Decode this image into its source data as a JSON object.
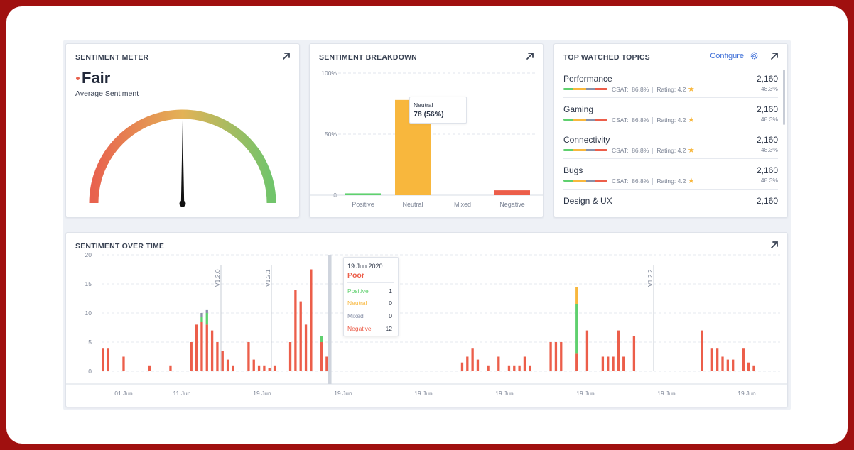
{
  "meter": {
    "title": "SENTIMENT METER",
    "value_label": "Fair",
    "subtitle": "Average Sentiment",
    "status_color": "#e8624e",
    "needle_fraction": 0.5
  },
  "breakdown": {
    "title": "SENTIMENT BREAKDOWN",
    "tooltip": {
      "label": "Neutral",
      "value": "78 (56%)"
    }
  },
  "topics": {
    "title": "TOP WATCHED TOPICS",
    "configure_label": "Configure",
    "items": [
      {
        "name": "Performance",
        "count": "2,160",
        "csat_label": "CSAT:",
        "csat": "86.8%",
        "rating_label": "Rating: 4.2",
        "pct": "48.3%"
      },
      {
        "name": "Gaming",
        "count": "2,160",
        "csat_label": "CSAT:",
        "csat": "86.8%",
        "rating_label": "Rating: 4.2",
        "pct": "48.3%"
      },
      {
        "name": "Connectivity",
        "count": "2,160",
        "csat_label": "CSAT:",
        "csat": "86.8%",
        "rating_label": "Rating: 4.2",
        "pct": "48.3%"
      },
      {
        "name": "Bugs",
        "count": "2,160",
        "csat_label": "CSAT:",
        "csat": "86.8%",
        "rating_label": "Rating: 4.2",
        "pct": "48.3%"
      },
      {
        "name": "Design & UX",
        "count": "2,160"
      }
    ]
  },
  "over_time": {
    "title": "SENTIMENT OVER TIME",
    "tooltip": {
      "date": "19 Jun 2020",
      "status": "Poor",
      "rows": [
        {
          "label": "Positive",
          "value": "1"
        },
        {
          "label": "Neutral",
          "value": "0"
        },
        {
          "label": "Mixed",
          "value": "0"
        },
        {
          "label": "Negative",
          "value": "12"
        }
      ]
    }
  },
  "colors": {
    "positive": "#5fd06e",
    "neutral": "#f8b73d",
    "mixed": "#8891a8",
    "negative": "#ec5e4a",
    "link": "#3e6fd8"
  },
  "chart_data": [
    {
      "type": "bar",
      "categories": [
        "Positive",
        "Neutral",
        "Mixed",
        "Negative"
      ],
      "values": [
        1.5,
        78,
        0,
        4
      ],
      "ylim": [
        0,
        100
      ],
      "y_ticks": [
        "0",
        "50%",
        "100%"
      ],
      "colors": [
        "#5fd06e",
        "#f8b73d",
        "#8891a8",
        "#ec5e4a"
      ],
      "grid": true
    },
    {
      "type": "bar",
      "stacked": true,
      "ylim": [
        0,
        20
      ],
      "y_ticks": [
        "0",
        "5",
        "10",
        "15",
        "20"
      ],
      "x_tick_labels": [
        "01 Jun",
        "11 Jun",
        "19 Jun",
        "19 Jun",
        "19 Jun",
        "19 Jun",
        "19 Jun",
        "19 Jun",
        "19 Jun"
      ],
      "release_markers": [
        "V1.2.0",
        "V1.2.1",
        "V1.2.2"
      ],
      "series": [
        {
          "name": "Negative",
          "values": [
            4,
            4,
            0,
            0,
            2.5,
            0,
            0,
            0,
            0,
            1,
            0,
            0,
            0,
            1,
            0,
            0,
            0,
            5,
            8,
            8.5,
            8,
            7,
            5,
            3.5,
            2,
            1,
            0,
            0,
            5,
            2,
            1,
            1,
            0.5,
            1,
            0,
            0,
            5,
            14,
            12,
            8,
            17.5,
            0,
            5,
            2.5,
            0,
            0,
            0,
            0,
            0,
            0,
            0,
            0,
            0,
            0,
            0,
            0,
            0,
            0,
            0,
            0,
            0,
            0,
            0,
            0,
            0,
            0,
            0,
            0,
            0,
            1.5,
            2.5,
            4,
            2,
            0,
            1,
            0,
            2.5,
            0,
            1,
            1,
            1,
            2.5,
            1,
            0,
            0,
            0,
            5,
            5,
            5,
            0,
            0,
            3,
            0,
            7,
            0,
            0,
            2.5,
            2.5,
            2.5,
            7,
            2.5,
            0,
            6,
            0,
            0,
            0,
            0,
            0,
            0,
            0,
            0,
            0,
            0,
            0,
            0,
            7,
            0,
            4,
            4,
            2.5,
            2,
            2,
            0,
            4,
            1.5,
            1,
            0,
            0,
            0,
            0
          ]
        },
        {
          "name": "Positive",
          "values": [
            0,
            0,
            0,
            0,
            0,
            0,
            0,
            0,
            0,
            0,
            0,
            0,
            0,
            0,
            0,
            0,
            0,
            0,
            0,
            0.8,
            2,
            0,
            0,
            0,
            0,
            0,
            0,
            0,
            0,
            0,
            0,
            0,
            0,
            0,
            0,
            0,
            0,
            0,
            0,
            0,
            0,
            0,
            1,
            0,
            0,
            0,
            0,
            0,
            0,
            0,
            0,
            0,
            0,
            0,
            0,
            0,
            0,
            0,
            0,
            0,
            0,
            0,
            0,
            0,
            0,
            0,
            0,
            0,
            0,
            0,
            0,
            0,
            0,
            0,
            0,
            0,
            0,
            0,
            0,
            0,
            0,
            0,
            0,
            0,
            0,
            0,
            0,
            0,
            0,
            0,
            0,
            8.5,
            0,
            0,
            0,
            0,
            0,
            0,
            0,
            0,
            0,
            0,
            0,
            0,
            0,
            0,
            0,
            0,
            0,
            0,
            0,
            0,
            0,
            0,
            0,
            0,
            0,
            0,
            0,
            0,
            0,
            0,
            0,
            0,
            0,
            0,
            0,
            0,
            0,
            0
          ]
        },
        {
          "name": "Neutral",
          "values": [
            0,
            0,
            0,
            0,
            0,
            0,
            0,
            0,
            0,
            0,
            0,
            0,
            0,
            0,
            0,
            0,
            0,
            0,
            0,
            0,
            0,
            0,
            0,
            0,
            0,
            0,
            0,
            0,
            0,
            0,
            0,
            0,
            0,
            0,
            0,
            0,
            0,
            0,
            0,
            0,
            0,
            0,
            0,
            0,
            0,
            0,
            0,
            0,
            0,
            0,
            0,
            0,
            0,
            0,
            0,
            0,
            0,
            0,
            0,
            0,
            0,
            0,
            0,
            0,
            0,
            0,
            0,
            0,
            0,
            0,
            0,
            0,
            0,
            0,
            0,
            0,
            0,
            0,
            0,
            0,
            0,
            0,
            0,
            0,
            0,
            0,
            0,
            0,
            0,
            0,
            0,
            3,
            0,
            0,
            0,
            0,
            0,
            0,
            0,
            0,
            0,
            0,
            0,
            0,
            0,
            0,
            0,
            0,
            0,
            0,
            0,
            0,
            0,
            0,
            0,
            0,
            0,
            0,
            0,
            0,
            0,
            0,
            0,
            0,
            0,
            0,
            0,
            0,
            0,
            0
          ]
        },
        {
          "name": "Mixed",
          "values": [
            0,
            0,
            0,
            0,
            0,
            0,
            0,
            0,
            0,
            0,
            0,
            0,
            0,
            0,
            0,
            0,
            0,
            0,
            0,
            0.7,
            0.5,
            0,
            0,
            0,
            0,
            0,
            0,
            0,
            0,
            0,
            0,
            0,
            0,
            0,
            0,
            0,
            0,
            0,
            0,
            0,
            0,
            0,
            0,
            0,
            0,
            0,
            0,
            0,
            0,
            0,
            0,
            0,
            0,
            0,
            0,
            0,
            0,
            0,
            0,
            0,
            0,
            0,
            0,
            0,
            0,
            0,
            0,
            0,
            0,
            0,
            0,
            0,
            0,
            0,
            0,
            0,
            0,
            0,
            0,
            0,
            0,
            0,
            0,
            0,
            0,
            0,
            0,
            0,
            0,
            0,
            0,
            0,
            0,
            0,
            0,
            0,
            0,
            0,
            0,
            0,
            0,
            0,
            0,
            0,
            0,
            0,
            0,
            0,
            0,
            0,
            0,
            0,
            0,
            0,
            0,
            0,
            0,
            0,
            0,
            0,
            0,
            0,
            0,
            0,
            0,
            0,
            0,
            0,
            0,
            0
          ]
        }
      ]
    }
  ]
}
